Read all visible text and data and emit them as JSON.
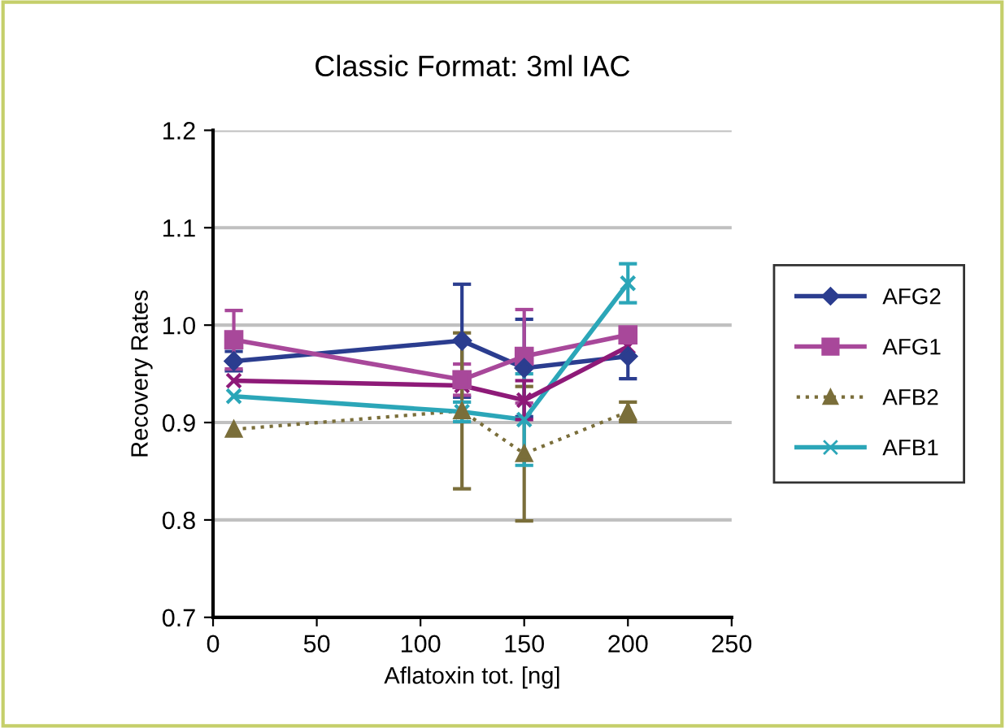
{
  "chart_data": {
    "type": "line",
    "title": "Classic Format: 3ml IAC",
    "xlabel": "Aflatoxin tot. [ng]",
    "ylabel": "Recovery Rates",
    "x": [
      10,
      120,
      150,
      200
    ],
    "series": [
      {
        "name": "AFG2",
        "color": "#2b3d8f",
        "marker": "diamond",
        "line_style": "solid",
        "values": [
          0.963,
          0.984,
          0.956,
          0.968
        ],
        "errors": [
          0.01,
          0.058,
          0.05,
          0.023
        ]
      },
      {
        "name": "AFG1",
        "color": "#a8489a",
        "marker": "square",
        "line_style": "solid",
        "values": [
          0.985,
          0.944,
          0.968,
          0.99
        ],
        "errors": [
          0.03,
          0.016,
          0.048,
          null
        ]
      },
      {
        "name": "AFB2",
        "color": "#7a6e3a",
        "marker": "triangle",
        "line_style": "dotted",
        "values": [
          0.893,
          0.912,
          0.868,
          0.911
        ],
        "errors": [
          null,
          0.08,
          0.069,
          0.01
        ]
      },
      {
        "name": "AFB1",
        "color": "#2ba6b8",
        "marker": "cross",
        "line_style": "solid",
        "values": [
          0.927,
          0.911,
          0.903,
          1.043
        ],
        "errors": [
          null,
          0.01,
          0.047,
          0.02
        ]
      },
      {
        "color": "#8e1a78",
        "marker": "cross",
        "line_style": "solid",
        "values": [
          0.943,
          0.938,
          0.923,
          0.978
        ],
        "errors": [
          null,
          null,
          0.02,
          null
        ]
      }
    ],
    "xlim": [
      0,
      250
    ],
    "xticks": [
      0,
      50,
      100,
      150,
      200,
      250
    ],
    "ylim": [
      0.7,
      1.2
    ],
    "yticks": [
      {
        "value": 0.7,
        "label": "0.7"
      },
      {
        "value": 0.8,
        "label": "0.8"
      },
      {
        "value": 0.9,
        "label": "0.9"
      },
      {
        "value": 1.0,
        "label": "1.0"
      },
      {
        "value": 1.1,
        "label": "1.1"
      },
      {
        "value": 1.2,
        "label": "1.2"
      }
    ],
    "grid": "y",
    "legend": "right"
  }
}
